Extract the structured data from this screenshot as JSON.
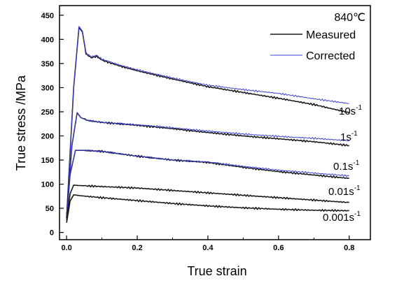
{
  "chart_data": {
    "type": "line",
    "title": "840℃",
    "xlabel": "True strain",
    "ylabel": "True stress /MPa",
    "xlim": [
      -0.02,
      0.86
    ],
    "ylim": [
      -15,
      470
    ],
    "x_ticks": [
      0.0,
      0.2,
      0.4,
      0.6,
      0.8
    ],
    "x_tick_labels": [
      "0.0",
      "0.2",
      "0.4",
      "0.6",
      "0.8"
    ],
    "y_ticks": [
      0,
      50,
      100,
      150,
      200,
      250,
      300,
      350,
      400,
      450
    ],
    "y_tick_labels": [
      "0",
      "50",
      "100",
      "150",
      "200",
      "250",
      "300",
      "350",
      "400",
      "450"
    ],
    "legend": {
      "placement": "top-right",
      "entries": [
        {
          "label": "Measured",
          "color": "#1a1a1a"
        },
        {
          "label": "Corrected",
          "color": "#3b3bdc"
        }
      ]
    },
    "curve_labels": [
      {
        "base": "10s",
        "exp": "-1"
      },
      {
        "base": "1s",
        "exp": "-1"
      },
      {
        "base": "0.1s",
        "exp": "-1"
      },
      {
        "base": "0.01s",
        "exp": "-1"
      },
      {
        "base": "0.001s",
        "exp": "-1"
      }
    ],
    "series": [
      {
        "name": "Measured",
        "curve": 0,
        "color": "#1a1a1a",
        "x": [
          0.0,
          0.02,
          0.035,
          0.045,
          0.055,
          0.07,
          0.085,
          0.1,
          0.15,
          0.2,
          0.3,
          0.4,
          0.5,
          0.6,
          0.7,
          0.8
        ],
        "y": [
          30,
          300,
          425,
          415,
          370,
          362,
          365,
          357,
          345,
          335,
          318,
          302,
          290,
          278,
          265,
          248
        ]
      },
      {
        "name": "Corrected",
        "curve": 0,
        "color": "#3b3bdc",
        "x": [
          0.0,
          0.02,
          0.035,
          0.045,
          0.055,
          0.07,
          0.085,
          0.1,
          0.15,
          0.2,
          0.3,
          0.4,
          0.5,
          0.6,
          0.7,
          0.8
        ],
        "y": [
          30,
          300,
          427,
          417,
          372,
          364,
          367,
          359,
          347,
          337,
          320,
          305,
          296,
          288,
          277,
          267
        ]
      },
      {
        "name": "Measured",
        "curve": 1,
        "color": "#1a1a1a",
        "x": [
          0.0,
          0.015,
          0.03,
          0.04,
          0.06,
          0.1,
          0.2,
          0.3,
          0.4,
          0.5,
          0.6,
          0.7,
          0.8
        ],
        "y": [
          30,
          180,
          248,
          238,
          232,
          228,
          222,
          215,
          207,
          200,
          194,
          188,
          180
        ]
      },
      {
        "name": "Corrected",
        "curve": 1,
        "color": "#3b3bdc",
        "x": [
          0.0,
          0.015,
          0.03,
          0.04,
          0.06,
          0.1,
          0.2,
          0.3,
          0.4,
          0.5,
          0.6,
          0.7,
          0.8
        ],
        "y": [
          30,
          180,
          248,
          238,
          232,
          228,
          223,
          217,
          210,
          204,
          199,
          195,
          190
        ]
      },
      {
        "name": "Measured",
        "curve": 2,
        "color": "#1a1a1a",
        "x": [
          0.0,
          0.01,
          0.025,
          0.05,
          0.1,
          0.2,
          0.3,
          0.4,
          0.5,
          0.6,
          0.7,
          0.8
        ],
        "y": [
          30,
          120,
          170,
          170,
          168,
          158,
          150,
          145,
          135,
          126,
          119,
          112
        ]
      },
      {
        "name": "Corrected",
        "curve": 2,
        "color": "#3b3bdc",
        "x": [
          0.0,
          0.01,
          0.025,
          0.05,
          0.1,
          0.2,
          0.3,
          0.4,
          0.5,
          0.6,
          0.7,
          0.8
        ],
        "y": [
          30,
          120,
          170,
          170,
          168,
          158,
          150,
          146,
          137,
          129,
          123,
          117
        ]
      },
      {
        "name": "Measured",
        "curve": 3,
        "color": "#1a1a1a",
        "x": [
          0.0,
          0.01,
          0.02,
          0.04,
          0.1,
          0.2,
          0.3,
          0.4,
          0.5,
          0.6,
          0.7,
          0.8
        ],
        "y": [
          25,
          80,
          98,
          97,
          95,
          92,
          87,
          82,
          77,
          72,
          67,
          62
        ]
      },
      {
        "name": "Measured",
        "curve": 4,
        "color": "#1a1a1a",
        "x": [
          0.0,
          0.01,
          0.02,
          0.04,
          0.1,
          0.2,
          0.3,
          0.4,
          0.5,
          0.6,
          0.7,
          0.8
        ],
        "y": [
          20,
          65,
          78,
          76,
          72,
          66,
          60,
          55,
          51,
          48,
          46,
          45
        ]
      }
    ]
  }
}
